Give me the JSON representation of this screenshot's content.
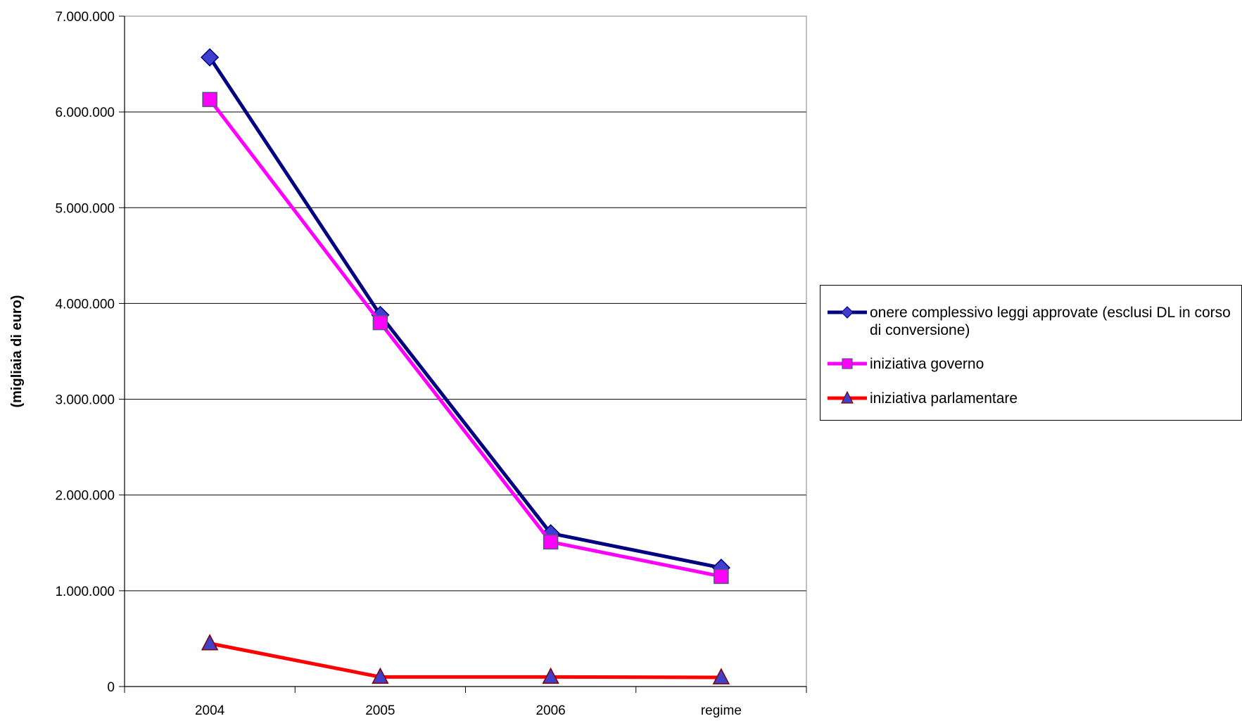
{
  "chart_data": {
    "type": "line",
    "categories": [
      "2004",
      "2005",
      "2006",
      "regime"
    ],
    "ylabel": "(migliaia di euro)",
    "xlabel": "",
    "ylim": [
      0,
      7000000
    ],
    "yticks": [
      0,
      1000000,
      2000000,
      3000000,
      4000000,
      5000000,
      6000000,
      7000000
    ],
    "ytick_labels": [
      "0",
      "1.000.000",
      "2.000.000",
      "3.000.000",
      "4.000.000",
      "5.000.000",
      "6.000.000",
      "7.000.000"
    ],
    "grid": true,
    "legend_position": "right",
    "series": [
      {
        "name": "onere complessivo leggi approvate (esclusi DL in corso di conversione)",
        "values": [
          6570000,
          3880000,
          1600000,
          1240000
        ],
        "color": "#000080",
        "marker": "diamond",
        "marker_fill": "#3f3fcf"
      },
      {
        "name": "iniziativa governo",
        "values": [
          6130000,
          3800000,
          1510000,
          1150000
        ],
        "color": "#ff00ff",
        "marker": "square",
        "marker_fill": "#ff00ff"
      },
      {
        "name": "iniziativa parlamentare",
        "values": [
          450000,
          100000,
          100000,
          95000
        ],
        "color": "#ff0000",
        "marker": "triangle",
        "marker_fill": "#4040c8"
      }
    ]
  }
}
